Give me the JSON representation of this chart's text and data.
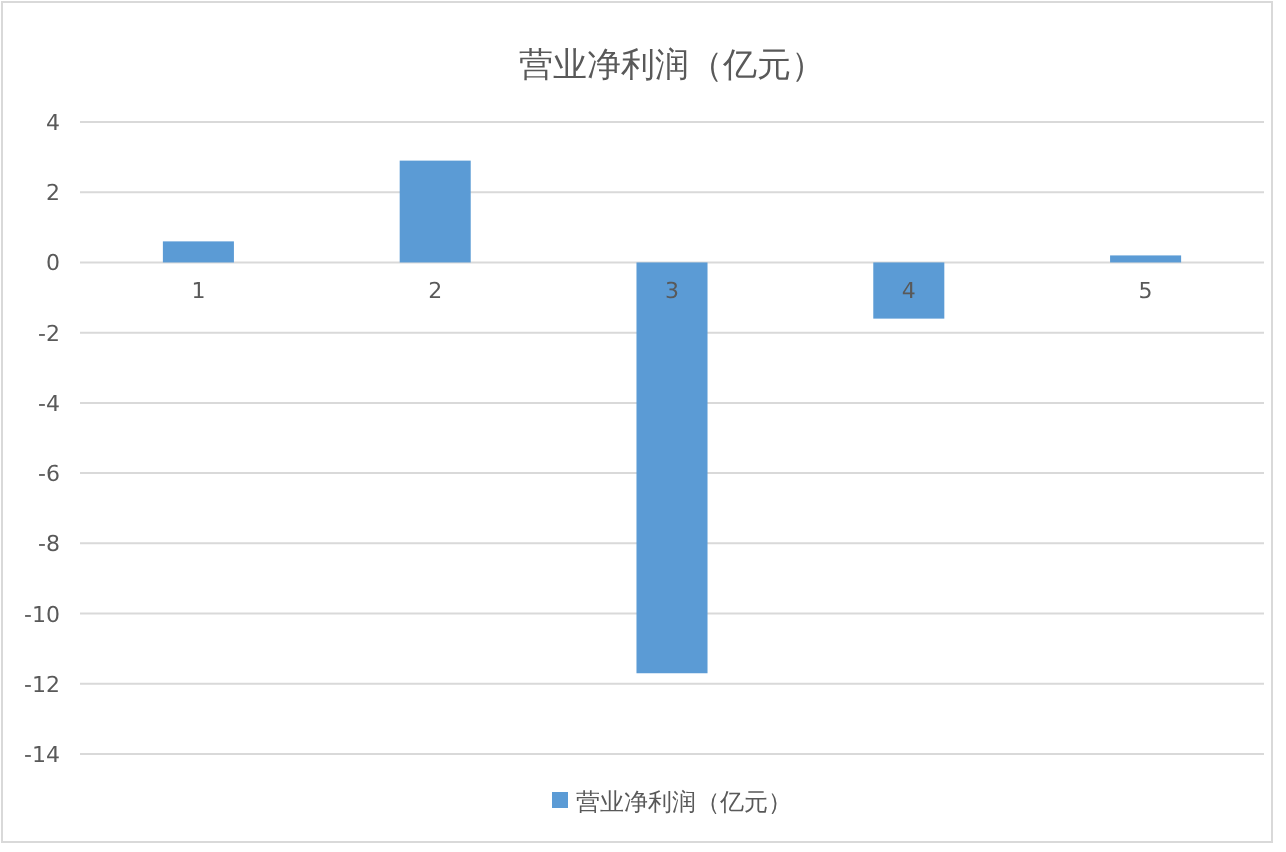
{
  "chart_data": {
    "type": "bar",
    "title": "营业净利润（亿元）",
    "categories": [
      "1",
      "2",
      "3",
      "4",
      "5"
    ],
    "series": [
      {
        "name": "营业净利润（亿元）",
        "color": "#5b9bd5",
        "values": [
          0.6,
          2.9,
          -11.7,
          -1.6,
          0.2
        ]
      }
    ],
    "ylim": [
      -14,
      4
    ],
    "yticks": [
      -14,
      -12,
      -10,
      -8,
      -6,
      -4,
      -2,
      0,
      2,
      4
    ],
    "grid": "y",
    "legend": "bottom"
  }
}
